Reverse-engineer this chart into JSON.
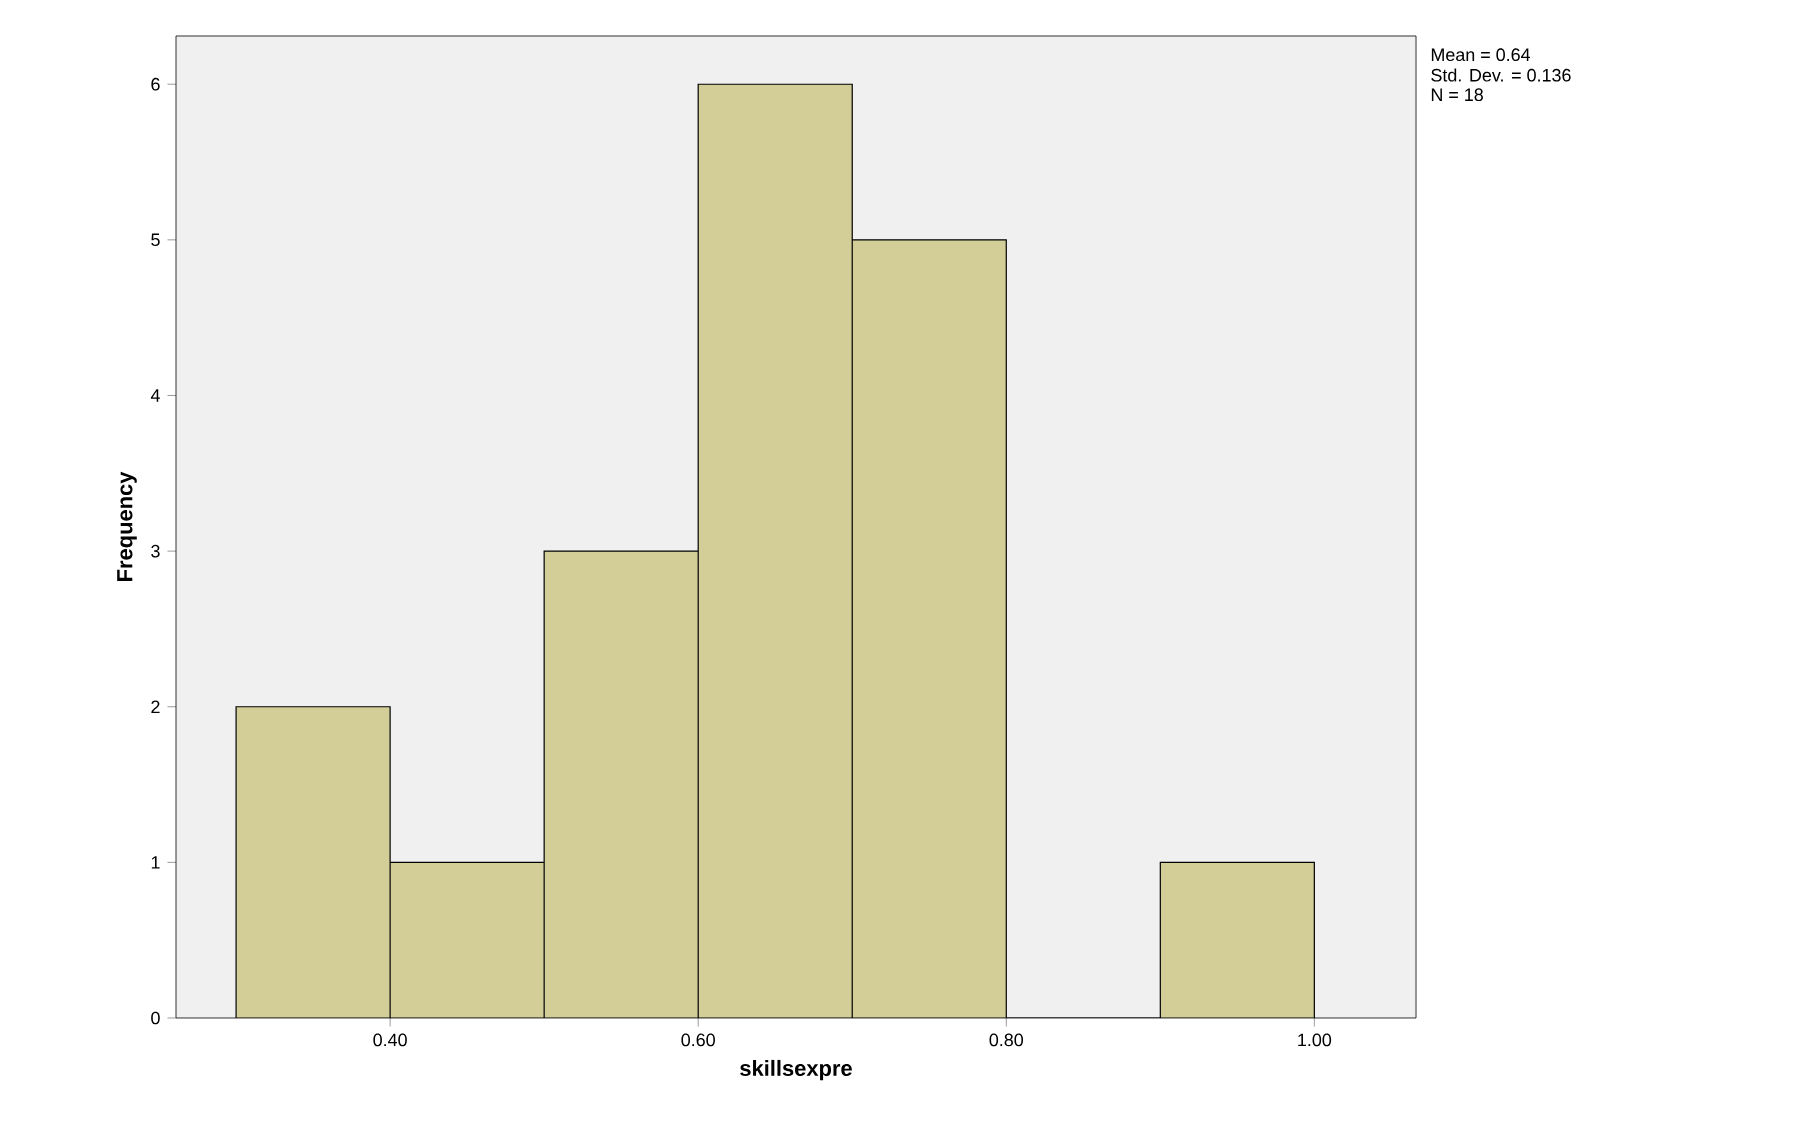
{
  "chart_data": {
    "type": "histogram",
    "xlabel": "skillsexpre",
    "ylabel": "Frequency",
    "bins": [
      0.3,
      0.4,
      0.5,
      0.6,
      0.7,
      0.8,
      0.9,
      1.0
    ],
    "values": [
      2,
      1,
      3,
      6,
      5,
      0,
      1
    ],
    "color": "#d3ce97",
    "xlim": [
      0.261,
      1.066
    ],
    "ylim": [
      0,
      6.31
    ],
    "xticks": [
      {
        "value": 0.4,
        "label": "0.40"
      },
      {
        "value": 0.6,
        "label": "0.60"
      },
      {
        "value": 0.8,
        "label": "0.80"
      },
      {
        "value": 1.0,
        "label": "1.00"
      }
    ],
    "yticks": [
      0,
      1,
      2,
      3,
      4,
      5,
      6
    ],
    "grid": false,
    "annotations": [
      "Mean = 0.64",
      "Std. Dev. = 0.136",
      "N = 18"
    ]
  }
}
